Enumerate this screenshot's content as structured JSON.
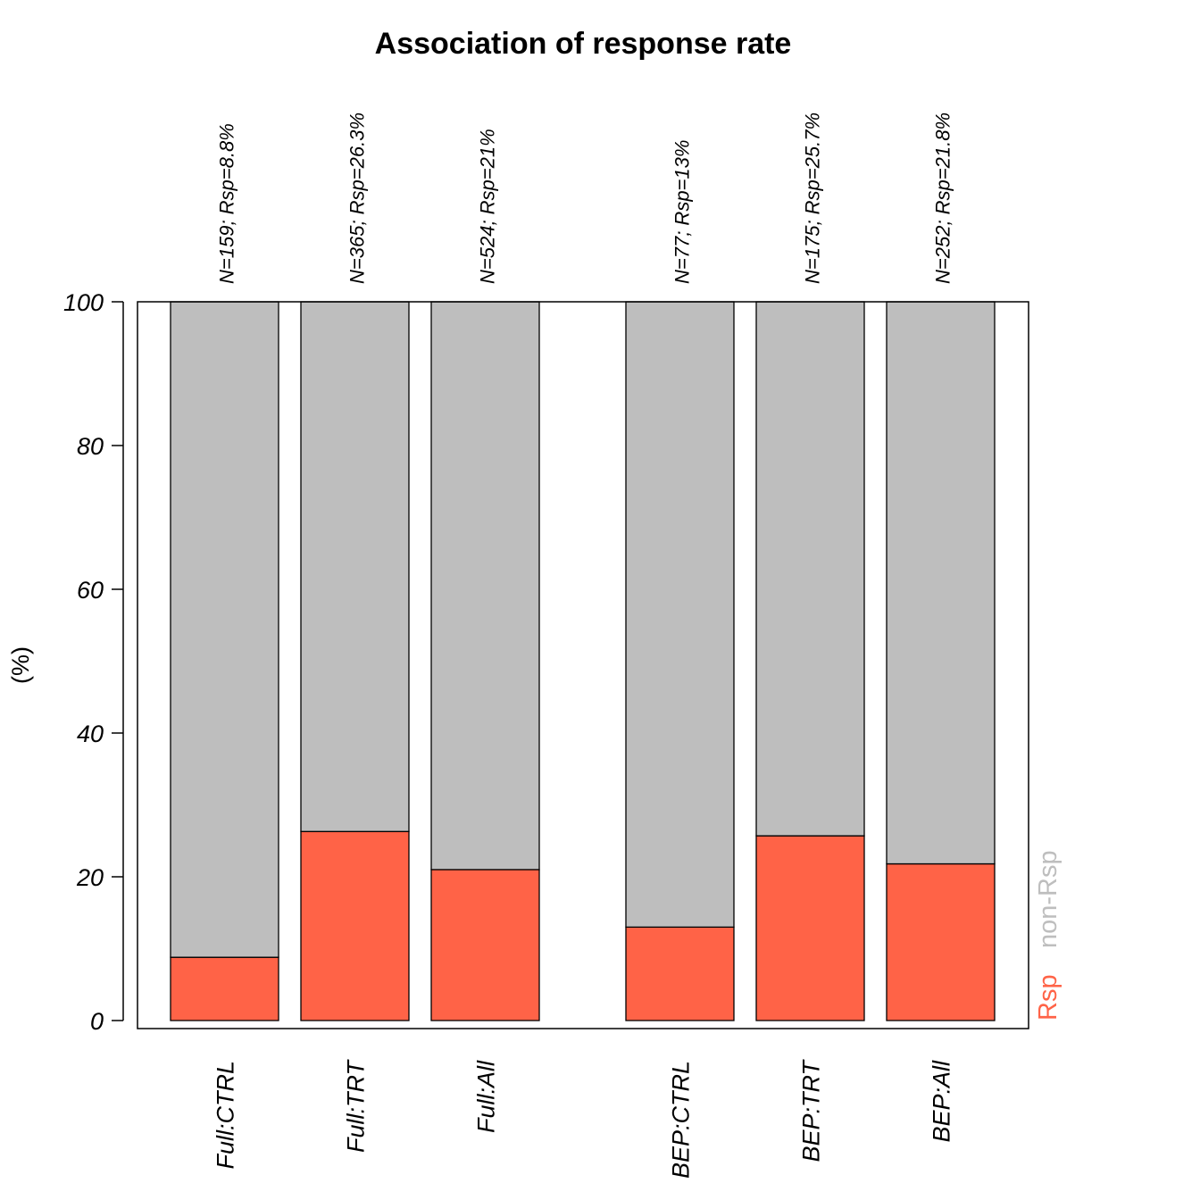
{
  "chart_data": {
    "type": "bar",
    "stacked": true,
    "title": "Association of response rate",
    "ylabel": "(%)",
    "xlabel": "",
    "ylim": [
      0,
      100
    ],
    "yticks": [
      0,
      20,
      40,
      60,
      80,
      100
    ],
    "grid": false,
    "categories": [
      "Full:CTRL",
      "Full:TRT",
      "Full:All",
      "BEP:CTRL",
      "BEP:TRT",
      "BEP:All"
    ],
    "annotations": [
      "N=159; Rsp=8.8%",
      "N=365; Rsp=26.3%",
      "N=524; Rsp=21%",
      "N=77; Rsp=13%",
      "N=175; Rsp=25.7%",
      "N=252; Rsp=21.8%"
    ],
    "series": [
      {
        "name": "Rsp",
        "color": "#FF6347",
        "values": [
          8.8,
          26.3,
          21.0,
          13.0,
          25.7,
          21.8
        ]
      },
      {
        "name": "non-Rsp",
        "color": "#BEBEBE",
        "values": [
          91.2,
          73.7,
          79.0,
          87.0,
          74.3,
          78.2
        ]
      }
    ],
    "legend_position": "right, vertical",
    "legend": [
      "Rsp",
      "non-Rsp"
    ]
  }
}
